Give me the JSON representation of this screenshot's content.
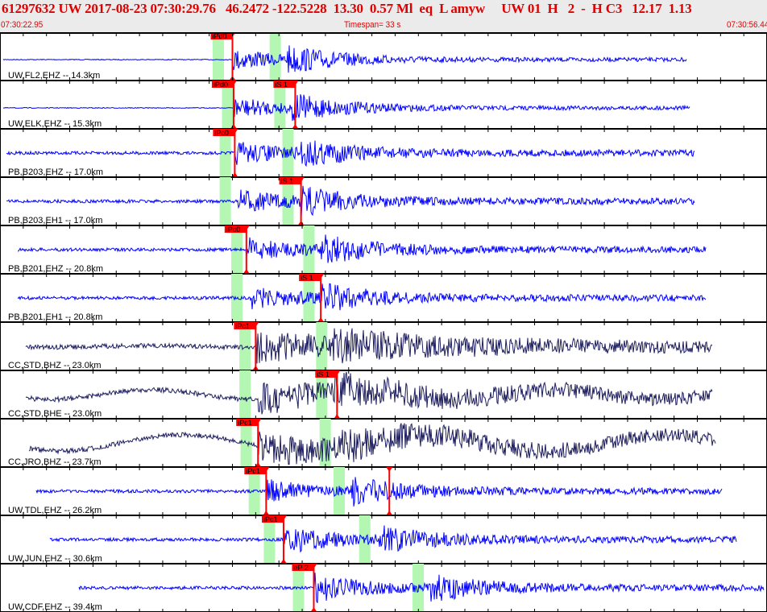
{
  "header": {
    "event_line": "61297632 UW 2017-08-23 07:30:29.76   46.2472 -122.5228  13.30  0.57 Ml  eq  L amyw     UW 01  H   2  -  H C3   12.17  1.13",
    "start_time": "07:30:22.95",
    "timespan": "Timespan=  33 s",
    "end_time": "07:30:56.44"
  },
  "colors": {
    "text": "#e00000",
    "pick": "#ff0000",
    "window": "#b3f7b3",
    "short_period": "#0000ff",
    "broadband": "#1e1e60"
  },
  "traces": [
    {
      "label": "UW,FL2,EHZ -- 14.3km",
      "color": "short_period",
      "start": 4,
      "end": 852,
      "pick": {
        "label": "iPd0",
        "t": 10.0
      },
      "windows": [
        9.6,
        12.05
      ]
    },
    {
      "label": "UW,ELK,EHZ -- 15.3km",
      "color": "short_period",
      "start": 4,
      "end": 856,
      "pick": {
        "label": "iPd0",
        "t": 10.05
      },
      "spick": {
        "label": "iS 1",
        "t": 12.7
      },
      "windows": [
        10.0,
        12.25
      ]
    },
    {
      "label": "PB,B203,EHZ -- 17.0km",
      "color": "short_period",
      "start": 8,
      "end": 862,
      "pick": {
        "label": "iPc0",
        "t": 10.1
      },
      "windows": [
        9.9,
        12.6
      ]
    },
    {
      "label": "PB,B203,EH1 -- 17.0km",
      "color": "short_period",
      "start": 8,
      "end": 862,
      "spick": {
        "label": "iS 1",
        "t": 12.95
      },
      "windows": [
        9.9,
        12.6
      ]
    },
    {
      "label": "PB,B201,EHZ -- 20.8km",
      "color": "short_period",
      "start": 22,
      "end": 876,
      "pick": {
        "label": "iPc0",
        "t": 10.6
      },
      "windows": [
        10.4,
        13.5
      ]
    },
    {
      "label": "PB,B201,EH1 -- 20.8km",
      "color": "short_period",
      "start": 22,
      "end": 876,
      "spick": {
        "label": "iS 1",
        "t": 13.8
      },
      "windows": [
        10.4,
        13.5
      ]
    },
    {
      "label": "CC,STD,BHZ -- 23.0km",
      "color": "broadband",
      "start": 32,
      "end": 884,
      "pick": {
        "label": "iPc1",
        "t": 11.0
      },
      "windows": [
        10.75,
        14.05
      ]
    },
    {
      "label": "CC,STD,BHE -- 23.0km",
      "color": "broadband",
      "start": 32,
      "end": 884,
      "spick": {
        "label": "iS 1",
        "t": 14.5
      },
      "windows": [
        10.75,
        14.05
      ]
    },
    {
      "label": "CC,JRO,BHZ -- 23.7km",
      "color": "broadband",
      "start": 36,
      "end": 888,
      "pick": {
        "label": "iPc1",
        "t": 11.1
      },
      "windows": [
        10.8,
        14.2
      ]
    },
    {
      "label": "UW,TDL,EHZ -- 26.2km",
      "color": "short_period",
      "start": 45,
      "end": 896,
      "pick": {
        "label": "iPc1",
        "t": 11.45
      },
      "spick": {
        "label": "",
        "t": 16.75
      },
      "windows": [
        11.15,
        14.8
      ]
    },
    {
      "label": "UW,JUN,EHZ -- 30.6km",
      "color": "short_period",
      "start": 62,
      "end": 914,
      "pick": {
        "label": "iPc1",
        "t": 12.2
      },
      "windows": [
        11.8,
        15.9
      ]
    },
    {
      "label": "UW,CDF,EHZ -- 39.4km",
      "color": "short_period",
      "start": 98,
      "end": 948,
      "pick": {
        "label": "eP 2",
        "t": 13.5
      },
      "windows": [
        13.05,
        18.2
      ]
    }
  ]
}
